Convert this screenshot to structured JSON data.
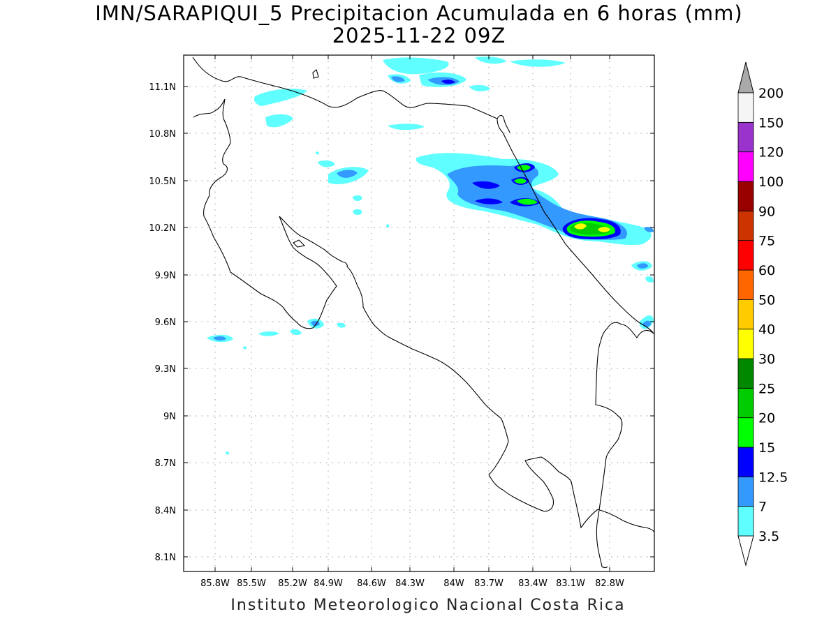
{
  "title": {
    "line1": "IMN/SARAPIQUI_5 Precipitacion Acumulada en 6 horas (mm)",
    "line2": "2025-11-22 09Z"
  },
  "footer": "Instituto Meteorologico Nacional Costa Rica",
  "map": {
    "lon_range": [
      -86.05,
      -82.55
    ],
    "lat_range": [
      8.0,
      11.3
    ],
    "x_ticks": [
      "85.8W",
      "85.5W",
      "85.2W",
      "84.9W",
      "84.6W",
      "84.3W",
      "84W",
      "83.7W",
      "83.4W",
      "83.1W",
      "82.8W"
    ],
    "y_ticks": [
      "11.1N",
      "10.8N",
      "10.5N",
      "10.2N",
      "9.9N",
      "9.6N",
      "9.3N",
      "9N",
      "8.7N",
      "8.4N",
      "8.1N"
    ],
    "grid": "dotted"
  },
  "colorbar": {
    "labels": [
      "3.5",
      "7",
      "12.5",
      "15",
      "20",
      "25",
      "30",
      "40",
      "50",
      "60",
      "75",
      "90",
      "100",
      "120",
      "150",
      "200"
    ],
    "colors": [
      "#ffffff",
      "#60ffff",
      "#3399ff",
      "#0000ff",
      "#00ff00",
      "#00cc00",
      "#008800",
      "#ffff00",
      "#ffcc00",
      "#ff6600",
      "#ff0000",
      "#cc3300",
      "#990000",
      "#ff00ff",
      "#9933cc",
      "#f5f5f5"
    ],
    "over_color": "#aaaaaa",
    "under_color": "#ffffff"
  },
  "precip_colors": {
    "c1": "#60ffff",
    "c2": "#3399ff",
    "c3": "#0000ff",
    "c4": "#00ff00",
    "c5": "#00cc00",
    "c6": "#008800",
    "c7": "#ffff00"
  }
}
